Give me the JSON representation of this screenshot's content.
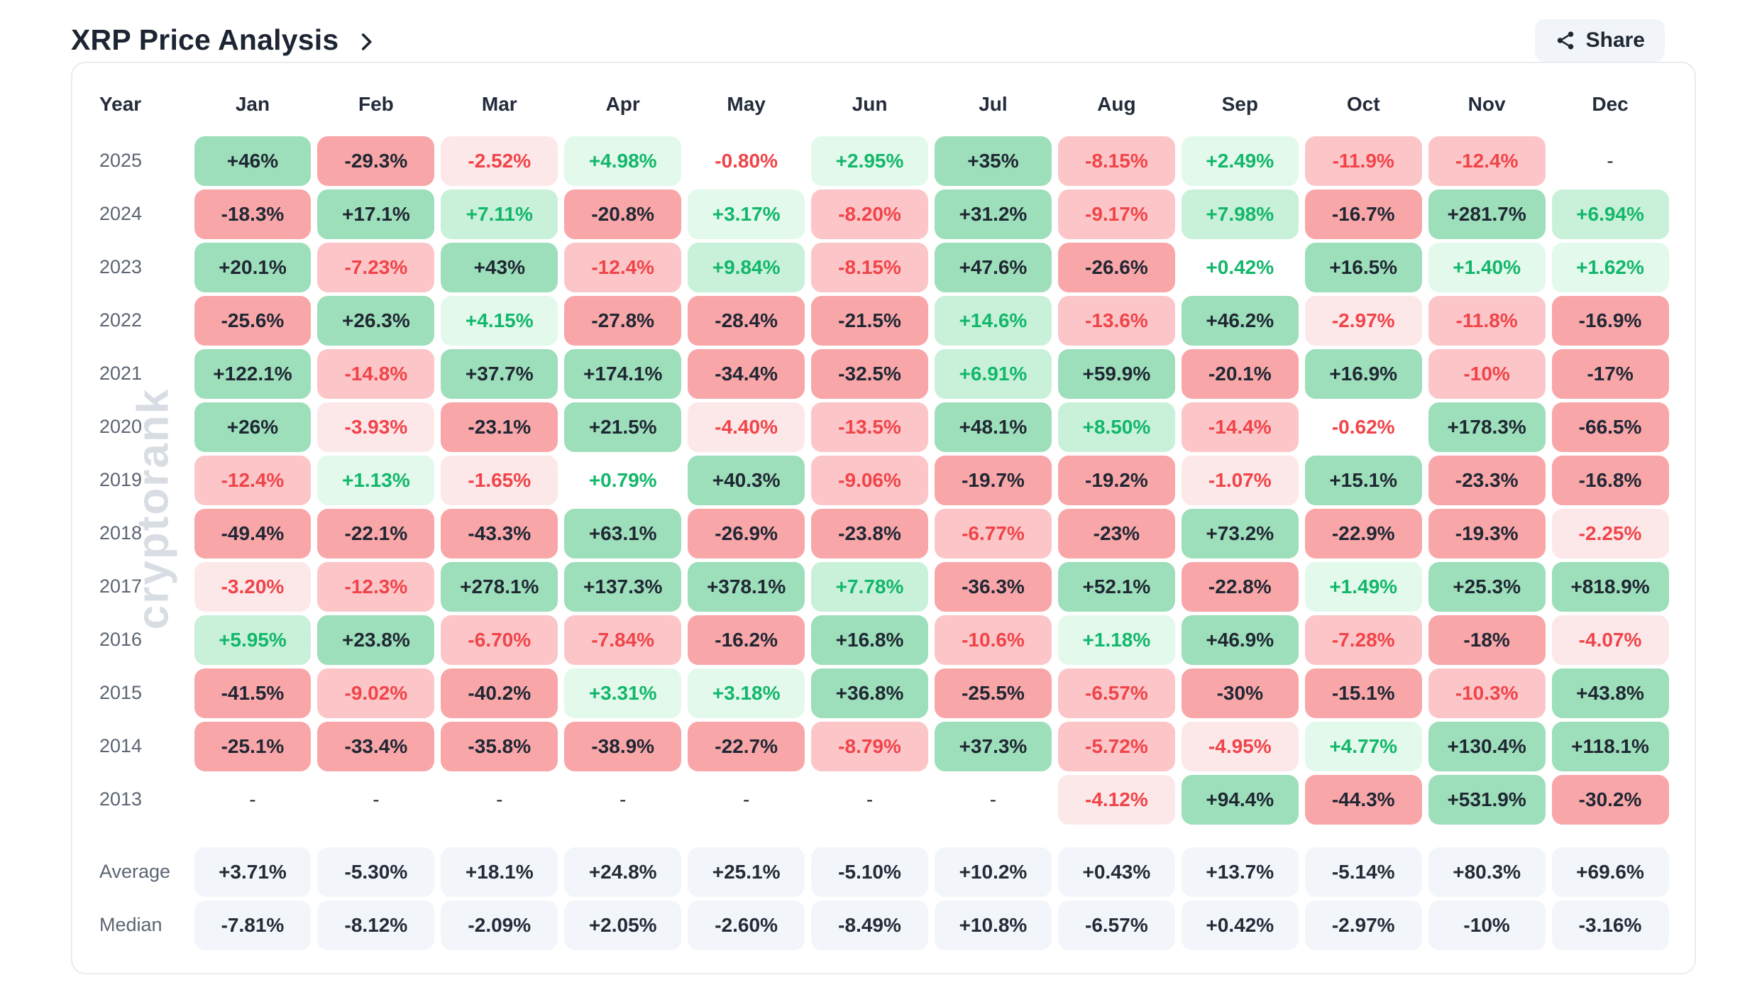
{
  "header": {
    "title": "XRP Price Analysis",
    "share_label": "Share"
  },
  "watermark": "cryptorank",
  "colors": {
    "positive_text": "#12b76a",
    "negative_text": "#f04449",
    "dark_cell_text": "#1f2733",
    "green_strong_bg": "#9ddfba",
    "green_medium_bg": "#c9f1da",
    "green_light_bg": "#e2f9ec",
    "red_strong_bg": "#f9a6a9",
    "red_medium_bg": "#fcc6c8",
    "red_light_bg": "#fde8e9",
    "summary_cell_bg": "#f2f6fb",
    "card_border": "#e8ecf1",
    "title_color": "#1d2532",
    "year_label_color": "#5b6573",
    "watermark_color": "#d8dde4",
    "share_button_bg": "#f1f5f9"
  },
  "table": {
    "columns": [
      "Year",
      "Jan",
      "Feb",
      "Mar",
      "Apr",
      "May",
      "Jun",
      "Jul",
      "Aug",
      "Sep",
      "Oct",
      "Nov",
      "Dec"
    ],
    "rows": [
      {
        "year": "2025",
        "cells": [
          {
            "v": "+46%",
            "s": "g3"
          },
          {
            "v": "-29.3%",
            "s": "r3"
          },
          {
            "v": "-2.52%",
            "s": "r1"
          },
          {
            "v": "+4.98%",
            "s": "g1"
          },
          {
            "v": "-0.80%",
            "s": "rw"
          },
          {
            "v": "+2.95%",
            "s": "g1"
          },
          {
            "v": "+35%",
            "s": "g3"
          },
          {
            "v": "-8.15%",
            "s": "r2"
          },
          {
            "v": "+2.49%",
            "s": "g1"
          },
          {
            "v": "-11.9%",
            "s": "r2"
          },
          {
            "v": "-12.4%",
            "s": "r2"
          },
          {
            "v": "-",
            "s": "dash"
          }
        ]
      },
      {
        "year": "2024",
        "cells": [
          {
            "v": "-18.3%",
            "s": "r3"
          },
          {
            "v": "+17.1%",
            "s": "g3"
          },
          {
            "v": "+7.11%",
            "s": "g2"
          },
          {
            "v": "-20.8%",
            "s": "r3"
          },
          {
            "v": "+3.17%",
            "s": "g1"
          },
          {
            "v": "-8.20%",
            "s": "r2"
          },
          {
            "v": "+31.2%",
            "s": "g3"
          },
          {
            "v": "-9.17%",
            "s": "r2"
          },
          {
            "v": "+7.98%",
            "s": "g2"
          },
          {
            "v": "-16.7%",
            "s": "r3"
          },
          {
            "v": "+281.7%",
            "s": "g3"
          },
          {
            "v": "+6.94%",
            "s": "g2"
          }
        ]
      },
      {
        "year": "2023",
        "cells": [
          {
            "v": "+20.1%",
            "s": "g3"
          },
          {
            "v": "-7.23%",
            "s": "r2"
          },
          {
            "v": "+43%",
            "s": "g3"
          },
          {
            "v": "-12.4%",
            "s": "r2"
          },
          {
            "v": "+9.84%",
            "s": "g2"
          },
          {
            "v": "-8.15%",
            "s": "r2"
          },
          {
            "v": "+47.6%",
            "s": "g3"
          },
          {
            "v": "-26.6%",
            "s": "r3"
          },
          {
            "v": "+0.42%",
            "s": "gw"
          },
          {
            "v": "+16.5%",
            "s": "g3"
          },
          {
            "v": "+1.40%",
            "s": "g1"
          },
          {
            "v": "+1.62%",
            "s": "g1"
          }
        ]
      },
      {
        "year": "2022",
        "cells": [
          {
            "v": "-25.6%",
            "s": "r3"
          },
          {
            "v": "+26.3%",
            "s": "g3"
          },
          {
            "v": "+4.15%",
            "s": "g1"
          },
          {
            "v": "-27.8%",
            "s": "r3"
          },
          {
            "v": "-28.4%",
            "s": "r3"
          },
          {
            "v": "-21.5%",
            "s": "r3"
          },
          {
            "v": "+14.6%",
            "s": "g2"
          },
          {
            "v": "-13.6%",
            "s": "r2"
          },
          {
            "v": "+46.2%",
            "s": "g3"
          },
          {
            "v": "-2.97%",
            "s": "r1"
          },
          {
            "v": "-11.8%",
            "s": "r2"
          },
          {
            "v": "-16.9%",
            "s": "r3"
          }
        ]
      },
      {
        "year": "2021",
        "cells": [
          {
            "v": "+122.1%",
            "s": "g3"
          },
          {
            "v": "-14.8%",
            "s": "r2"
          },
          {
            "v": "+37.7%",
            "s": "g3"
          },
          {
            "v": "+174.1%",
            "s": "g3"
          },
          {
            "v": "-34.4%",
            "s": "r3"
          },
          {
            "v": "-32.5%",
            "s": "r3"
          },
          {
            "v": "+6.91%",
            "s": "g2"
          },
          {
            "v": "+59.9%",
            "s": "g3"
          },
          {
            "v": "-20.1%",
            "s": "r3"
          },
          {
            "v": "+16.9%",
            "s": "g3"
          },
          {
            "v": "-10%",
            "s": "r2"
          },
          {
            "v": "-17%",
            "s": "r3"
          }
        ]
      },
      {
        "year": "2020",
        "cells": [
          {
            "v": "+26%",
            "s": "g3"
          },
          {
            "v": "-3.93%",
            "s": "r1"
          },
          {
            "v": "-23.1%",
            "s": "r3"
          },
          {
            "v": "+21.5%",
            "s": "g3"
          },
          {
            "v": "-4.40%",
            "s": "r1"
          },
          {
            "v": "-13.5%",
            "s": "r2"
          },
          {
            "v": "+48.1%",
            "s": "g3"
          },
          {
            "v": "+8.50%",
            "s": "g2"
          },
          {
            "v": "-14.4%",
            "s": "r2"
          },
          {
            "v": "-0.62%",
            "s": "rw"
          },
          {
            "v": "+178.3%",
            "s": "g3"
          },
          {
            "v": "-66.5%",
            "s": "r3"
          }
        ]
      },
      {
        "year": "2019",
        "cells": [
          {
            "v": "-12.4%",
            "s": "r2"
          },
          {
            "v": "+1.13%",
            "s": "g1"
          },
          {
            "v": "-1.65%",
            "s": "r1"
          },
          {
            "v": "+0.79%",
            "s": "gw"
          },
          {
            "v": "+40.3%",
            "s": "g3"
          },
          {
            "v": "-9.06%",
            "s": "r2"
          },
          {
            "v": "-19.7%",
            "s": "r3"
          },
          {
            "v": "-19.2%",
            "s": "r3"
          },
          {
            "v": "-1.07%",
            "s": "r1"
          },
          {
            "v": "+15.1%",
            "s": "g3"
          },
          {
            "v": "-23.3%",
            "s": "r3"
          },
          {
            "v": "-16.8%",
            "s": "r3"
          }
        ]
      },
      {
        "year": "2018",
        "cells": [
          {
            "v": "-49.4%",
            "s": "r3"
          },
          {
            "v": "-22.1%",
            "s": "r3"
          },
          {
            "v": "-43.3%",
            "s": "r3"
          },
          {
            "v": "+63.1%",
            "s": "g3"
          },
          {
            "v": "-26.9%",
            "s": "r3"
          },
          {
            "v": "-23.8%",
            "s": "r3"
          },
          {
            "v": "-6.77%",
            "s": "r2"
          },
          {
            "v": "-23%",
            "s": "r3"
          },
          {
            "v": "+73.2%",
            "s": "g3"
          },
          {
            "v": "-22.9%",
            "s": "r3"
          },
          {
            "v": "-19.3%",
            "s": "r3"
          },
          {
            "v": "-2.25%",
            "s": "r1"
          }
        ]
      },
      {
        "year": "2017",
        "cells": [
          {
            "v": "-3.20%",
            "s": "r1"
          },
          {
            "v": "-12.3%",
            "s": "r2"
          },
          {
            "v": "+278.1%",
            "s": "g3"
          },
          {
            "v": "+137.3%",
            "s": "g3"
          },
          {
            "v": "+378.1%",
            "s": "g3"
          },
          {
            "v": "+7.78%",
            "s": "g2"
          },
          {
            "v": "-36.3%",
            "s": "r3"
          },
          {
            "v": "+52.1%",
            "s": "g3"
          },
          {
            "v": "-22.8%",
            "s": "r3"
          },
          {
            "v": "+1.49%",
            "s": "g1"
          },
          {
            "v": "+25.3%",
            "s": "g3"
          },
          {
            "v": "+818.9%",
            "s": "g3"
          }
        ]
      },
      {
        "year": "2016",
        "cells": [
          {
            "v": "+5.95%",
            "s": "g2"
          },
          {
            "v": "+23.8%",
            "s": "g3"
          },
          {
            "v": "-6.70%",
            "s": "r2"
          },
          {
            "v": "-7.84%",
            "s": "r2"
          },
          {
            "v": "-16.2%",
            "s": "r3"
          },
          {
            "v": "+16.8%",
            "s": "g3"
          },
          {
            "v": "-10.6%",
            "s": "r2"
          },
          {
            "v": "+1.18%",
            "s": "g1"
          },
          {
            "v": "+46.9%",
            "s": "g3"
          },
          {
            "v": "-7.28%",
            "s": "r2"
          },
          {
            "v": "-18%",
            "s": "r3"
          },
          {
            "v": "-4.07%",
            "s": "r1"
          }
        ]
      },
      {
        "year": "2015",
        "cells": [
          {
            "v": "-41.5%",
            "s": "r3"
          },
          {
            "v": "-9.02%",
            "s": "r2"
          },
          {
            "v": "-40.2%",
            "s": "r3"
          },
          {
            "v": "+3.31%",
            "s": "g1"
          },
          {
            "v": "+3.18%",
            "s": "g1"
          },
          {
            "v": "+36.8%",
            "s": "g3"
          },
          {
            "v": "-25.5%",
            "s": "r3"
          },
          {
            "v": "-6.57%",
            "s": "r2"
          },
          {
            "v": "-30%",
            "s": "r3"
          },
          {
            "v": "-15.1%",
            "s": "r3"
          },
          {
            "v": "-10.3%",
            "s": "r2"
          },
          {
            "v": "+43.8%",
            "s": "g3"
          }
        ]
      },
      {
        "year": "2014",
        "cells": [
          {
            "v": "-25.1%",
            "s": "r3"
          },
          {
            "v": "-33.4%",
            "s": "r3"
          },
          {
            "v": "-35.8%",
            "s": "r3"
          },
          {
            "v": "-38.9%",
            "s": "r3"
          },
          {
            "v": "-22.7%",
            "s": "r3"
          },
          {
            "v": "-8.79%",
            "s": "r2"
          },
          {
            "v": "+37.3%",
            "s": "g3"
          },
          {
            "v": "-5.72%",
            "s": "r2"
          },
          {
            "v": "-4.95%",
            "s": "r1"
          },
          {
            "v": "+4.77%",
            "s": "g1"
          },
          {
            "v": "+130.4%",
            "s": "g3"
          },
          {
            "v": "+118.1%",
            "s": "g3"
          }
        ]
      },
      {
        "year": "2013",
        "cells": [
          {
            "v": "-",
            "s": "dash"
          },
          {
            "v": "-",
            "s": "dash"
          },
          {
            "v": "-",
            "s": "dash"
          },
          {
            "v": "-",
            "s": "dash"
          },
          {
            "v": "-",
            "s": "dash"
          },
          {
            "v": "-",
            "s": "dash"
          },
          {
            "v": "-",
            "s": "dash"
          },
          {
            "v": "-4.12%",
            "s": "r1"
          },
          {
            "v": "+94.4%",
            "s": "g3"
          },
          {
            "v": "-44.3%",
            "s": "r3"
          },
          {
            "v": "+531.9%",
            "s": "g3"
          },
          {
            "v": "-30.2%",
            "s": "r3"
          }
        ]
      }
    ],
    "summary": [
      {
        "label": "Average",
        "cells": [
          "+3.71%",
          "-5.30%",
          "+18.1%",
          "+24.8%",
          "+25.1%",
          "-5.10%",
          "+10.2%",
          "+0.43%",
          "+13.7%",
          "-5.14%",
          "+80.3%",
          "+69.6%"
        ]
      },
      {
        "label": "Median",
        "cells": [
          "-7.81%",
          "-8.12%",
          "-2.09%",
          "+2.05%",
          "-2.60%",
          "-8.49%",
          "+10.8%",
          "-6.57%",
          "+0.42%",
          "-2.97%",
          "-10%",
          "-3.16%"
        ]
      }
    ]
  }
}
